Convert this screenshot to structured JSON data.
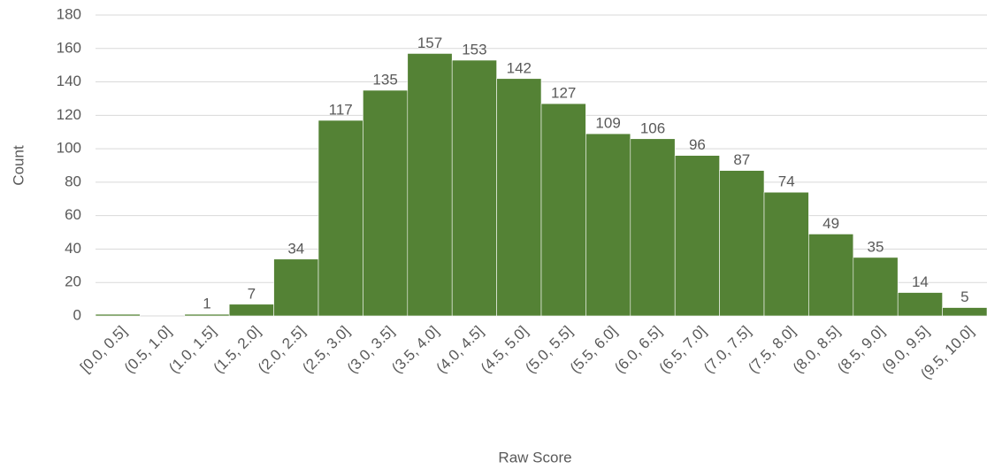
{
  "chart_data": {
    "type": "bar",
    "categories": [
      "[0.0, 0.5]",
      "(0.5, 1.0]",
      "(1.0, 1.5]",
      "(1.5, 2.0]",
      "(2.0, 2.5]",
      "(2.5, 3.0]",
      "(3.0, 3.5]",
      "(3.5, 4.0]",
      "(4.0, 4.5]",
      "(4.5, 5.0]",
      "(5.0, 5.5]",
      "(5.5, 6.0]",
      "(6.0, 6.5]",
      "(6.5, 7.0]",
      "(7.0, 7.5]",
      "(7.5, 8.0]",
      "(8.0, 8.5]",
      "(8.5, 9.0]",
      "(9.0, 9.5]",
      "(9.5, 10.0]"
    ],
    "values": [
      1,
      0,
      1,
      7,
      34,
      117,
      135,
      157,
      153,
      142,
      127,
      109,
      106,
      96,
      87,
      74,
      49,
      35,
      14,
      5
    ],
    "value_labels": [
      null,
      null,
      "1",
      "7",
      "34",
      "117",
      "135",
      "157",
      "153",
      "142",
      "127",
      "109",
      "106",
      "96",
      "87",
      "74",
      "49",
      "35",
      "14",
      "5"
    ],
    "color": "#548235",
    "xlabel": "Raw Score",
    "ylabel": "Count",
    "ylim": [
      0,
      180
    ],
    "yticks": [
      0,
      20,
      40,
      60,
      80,
      100,
      120,
      140,
      160,
      180
    ],
    "grid": true
  }
}
